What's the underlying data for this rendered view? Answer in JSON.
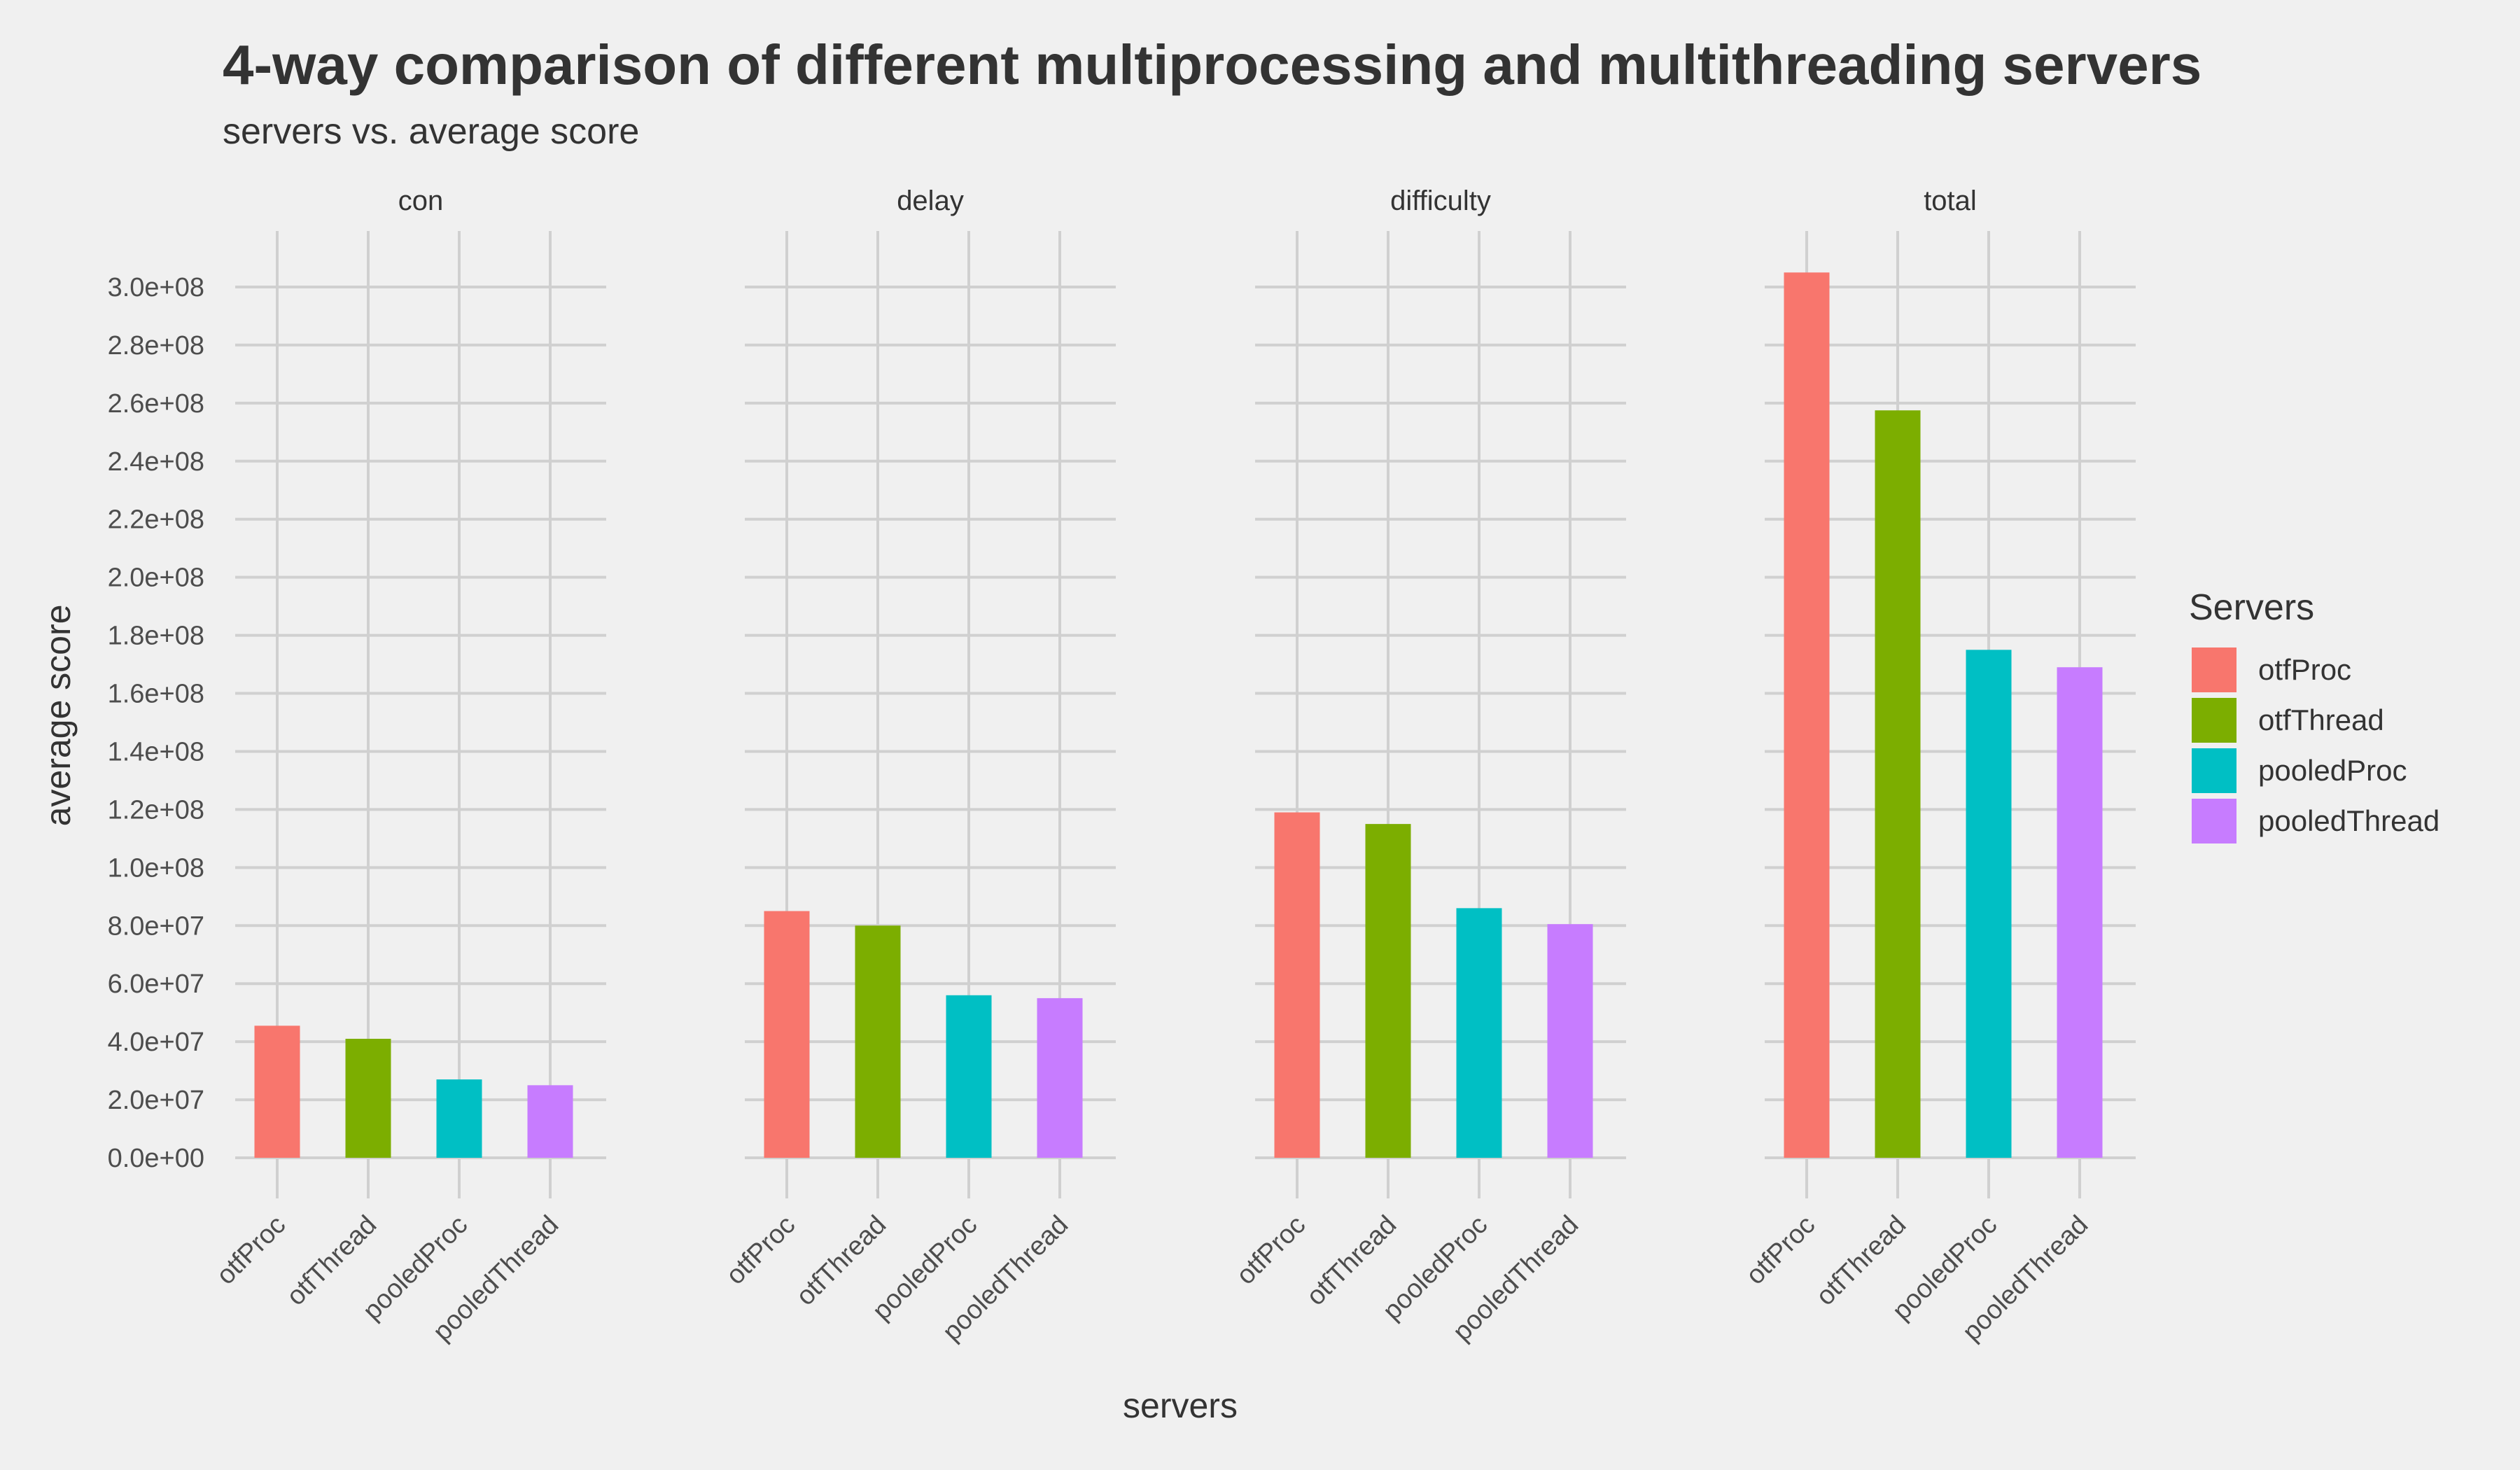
{
  "chart_data": {
    "type": "bar",
    "title": "4-way comparison of different multiprocessing and multithreading servers",
    "subtitle": "servers vs. average score",
    "xlabel": "servers",
    "ylabel": "average score",
    "categories": [
      "otfProc",
      "otfThread",
      "pooledProc",
      "pooledThread"
    ],
    "ylim": [
      0,
      300000000
    ],
    "yticks": [
      0,
      20000000,
      40000000,
      60000000,
      80000000,
      100000000,
      120000000,
      140000000,
      160000000,
      180000000,
      200000000,
      220000000,
      240000000,
      260000000,
      280000000,
      300000000
    ],
    "ytick_labels": [
      "0.0e+00",
      "2.0e+07",
      "4.0e+07",
      "6.0e+07",
      "8.0e+07",
      "1.0e+08",
      "1.2e+08",
      "1.4e+08",
      "1.6e+08",
      "1.8e+08",
      "2.0e+08",
      "2.2e+08",
      "2.4e+08",
      "2.6e+08",
      "2.8e+08",
      "3.0e+08"
    ],
    "panels": [
      {
        "label": "con",
        "values": [
          45500000,
          41000000,
          27000000,
          25000000
        ]
      },
      {
        "label": "delay",
        "values": [
          85000000,
          80000000,
          56000000,
          55000000
        ]
      },
      {
        "label": "difficulty",
        "values": [
          119000000,
          115000000,
          86000000,
          80500000
        ]
      },
      {
        "label": "total",
        "values": [
          305000000,
          257500000,
          175000000,
          169000000
        ]
      }
    ],
    "series_colors": [
      "#F8766D",
      "#7CAE00",
      "#00BFC4",
      "#C77CFF"
    ],
    "legend": {
      "title": "Servers",
      "entries": [
        "otfProc",
        "otfThread",
        "pooledProc",
        "pooledThread"
      ],
      "position": "right"
    },
    "grid": true,
    "background": "#f0f0f0"
  }
}
